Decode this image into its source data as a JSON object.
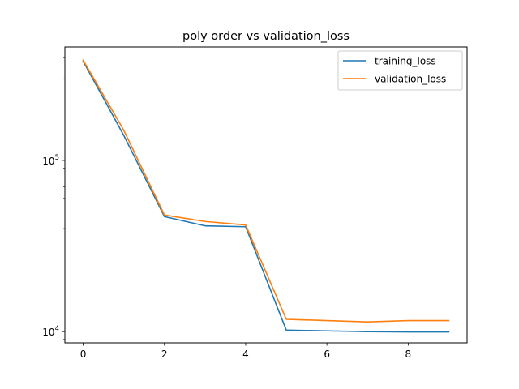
{
  "chart_data": {
    "type": "line",
    "title": "poly order vs validation_loss",
    "xlabel": "",
    "ylabel": "",
    "x": [
      0,
      1,
      2,
      3,
      4,
      5,
      6,
      7,
      8,
      9
    ],
    "series": [
      {
        "name": "training_loss",
        "color": "#1f77b4",
        "values": [
          380000,
          140000,
          47000,
          41500,
          41000,
          10200,
          10100,
          10000,
          9950,
          9950
        ]
      },
      {
        "name": "validation_loss",
        "color": "#ff7f0e",
        "values": [
          385000,
          150000,
          48000,
          44000,
          42000,
          11800,
          11600,
          11400,
          11600,
          11600
        ]
      }
    ],
    "xlim": [
      -0.45,
      9.45
    ],
    "ylim": [
      8600,
      460000
    ],
    "yscale": "log",
    "x_ticks": [
      0,
      2,
      4,
      6,
      8
    ],
    "x_tick_labels": [
      "0",
      "2",
      "4",
      "6",
      "8"
    ],
    "y_ticks": [
      10000,
      100000
    ],
    "y_tick_labels": [
      {
        "base": "10",
        "exp": "4"
      },
      {
        "base": "10",
        "exp": "5"
      }
    ],
    "grid": false,
    "legend_position": "top-right"
  }
}
